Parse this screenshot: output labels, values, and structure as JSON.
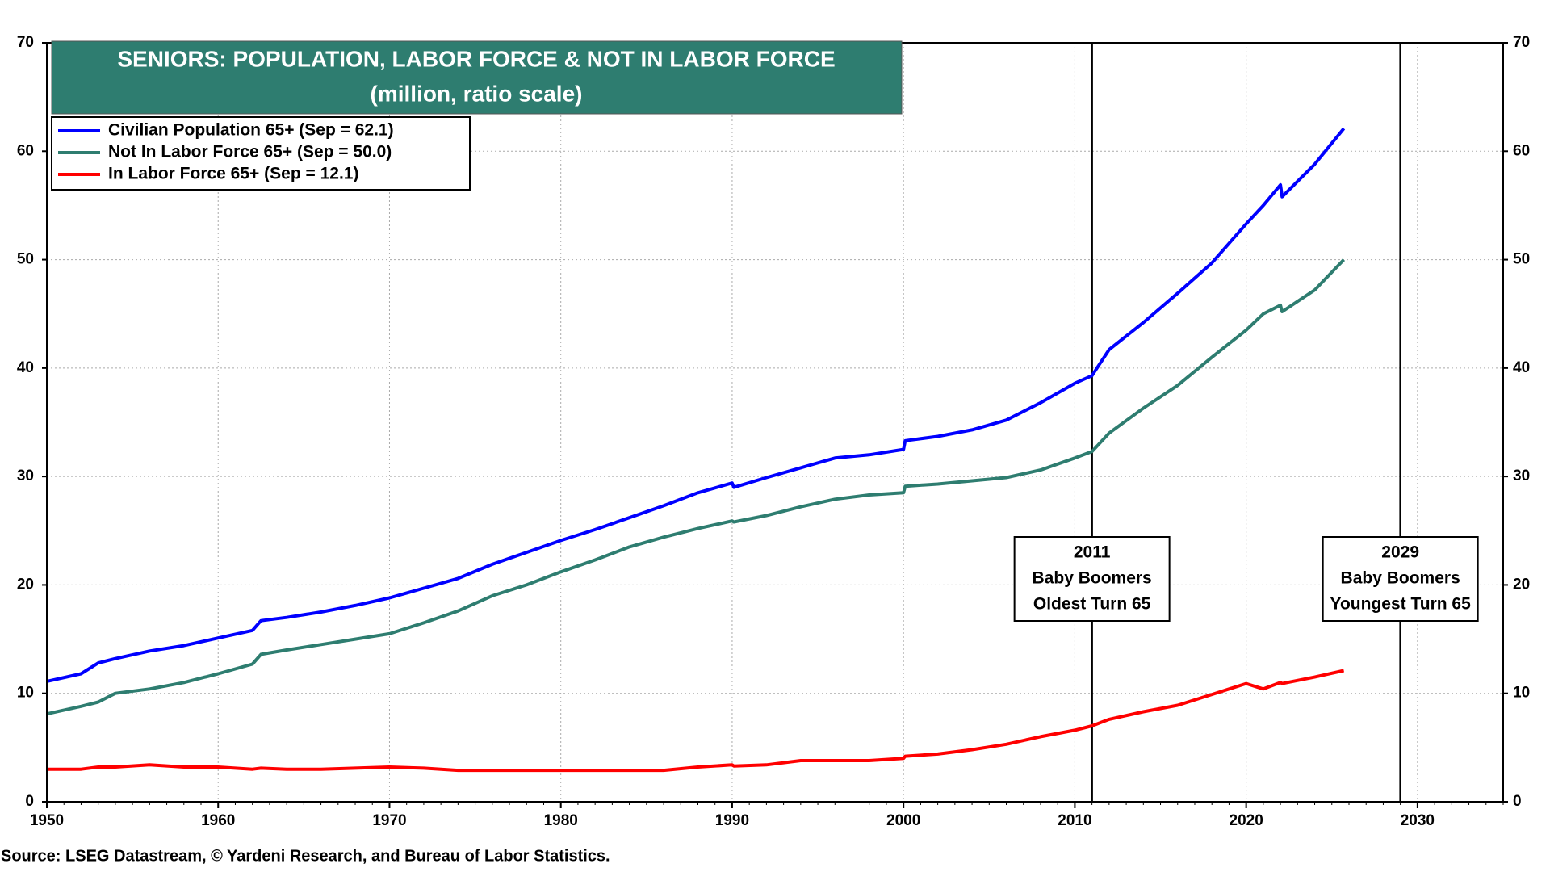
{
  "chart_data": {
    "type": "line",
    "title": "SENIORS: POPULATION, LABOR FORCE & NOT IN LABOR FORCE",
    "subtitle": "(million, ratio scale)",
    "source": "Source: LSEG Datastream, © Yardeni Research, and Bureau of Labor Statistics.",
    "x": [
      1950,
      1952,
      1953,
      1954,
      1956,
      1958,
      1960,
      1962,
      1962.5,
      1964,
      1966,
      1968,
      1970,
      1972,
      1974,
      1976,
      1978,
      1980,
      1982,
      1984,
      1986,
      1988,
      1990,
      1990.1,
      1992,
      1994,
      1996,
      1998,
      2000,
      2000.1,
      2002,
      2004,
      2006,
      2008,
      2010,
      2011,
      2012,
      2014,
      2016,
      2018,
      2020,
      2021,
      2022,
      2022.1,
      2024,
      2025.7
    ],
    "series": [
      {
        "name": "Civilian Population 65+ (Sep = 62.1)",
        "color": "#0000ff",
        "values": [
          11.1,
          11.8,
          12.8,
          13.2,
          13.9,
          14.4,
          15.1,
          15.8,
          16.7,
          17.0,
          17.5,
          18.1,
          18.8,
          19.7,
          20.6,
          21.9,
          23.0,
          24.1,
          25.1,
          26.2,
          27.3,
          28.5,
          29.4,
          29.0,
          29.9,
          30.8,
          31.7,
          32.0,
          32.5,
          33.3,
          33.7,
          34.3,
          35.2,
          36.8,
          38.6,
          39.3,
          41.7,
          44.2,
          46.9,
          49.7,
          53.3,
          55.0,
          56.9,
          55.8,
          58.8,
          62.1
        ]
      },
      {
        "name": "Not In Labor Force 65+ (Sep = 50.0)",
        "color": "#2e7d70",
        "values": [
          8.1,
          8.8,
          9.2,
          10.0,
          10.4,
          11.0,
          11.8,
          12.7,
          13.6,
          14.0,
          14.5,
          15.0,
          15.5,
          16.5,
          17.6,
          19.0,
          20.0,
          21.2,
          22.3,
          23.5,
          24.4,
          25.2,
          25.9,
          25.8,
          26.4,
          27.2,
          27.9,
          28.3,
          28.5,
          29.1,
          29.3,
          29.6,
          29.9,
          30.6,
          31.7,
          32.3,
          34.0,
          36.3,
          38.4,
          41.0,
          43.5,
          45.0,
          45.8,
          45.2,
          47.2,
          50.0
        ]
      },
      {
        "name": "In Labor Force 65+ (Sep = 12.1)",
        "color": "#ff0000",
        "values": [
          3.0,
          3.0,
          3.2,
          3.2,
          3.4,
          3.2,
          3.2,
          3.0,
          3.1,
          3.0,
          3.0,
          3.1,
          3.2,
          3.1,
          2.9,
          2.9,
          2.9,
          2.9,
          2.9,
          2.9,
          2.9,
          3.2,
          3.4,
          3.3,
          3.4,
          3.8,
          3.8,
          3.8,
          4.0,
          4.2,
          4.4,
          4.8,
          5.3,
          6.0,
          6.6,
          7.0,
          7.6,
          8.3,
          8.9,
          9.9,
          10.9,
          10.4,
          11.0,
          10.9,
          11.5,
          12.1
        ]
      }
    ],
    "xlim": [
      1950,
      2035
    ],
    "xticks": [
      1950,
      1960,
      1970,
      1980,
      1990,
      2000,
      2010,
      2020,
      2030
    ],
    "ylim": [
      0,
      70
    ],
    "yticks": [
      0,
      10,
      20,
      30,
      40,
      50,
      60,
      70
    ],
    "y2lim": [
      0,
      70
    ],
    "y2ticks": [
      0,
      10,
      20,
      30,
      40,
      50,
      60,
      70
    ],
    "grid": true,
    "legend": "top-left",
    "title_color": "#2e7d70",
    "annotations": [
      {
        "x": 2011,
        "text": [
          "2011",
          "Baby Boomers",
          "Oldest Turn 65"
        ]
      },
      {
        "x": 2029,
        "text": [
          "2029",
          "Baby Boomers",
          "Youngest Turn 65"
        ]
      }
    ]
  }
}
